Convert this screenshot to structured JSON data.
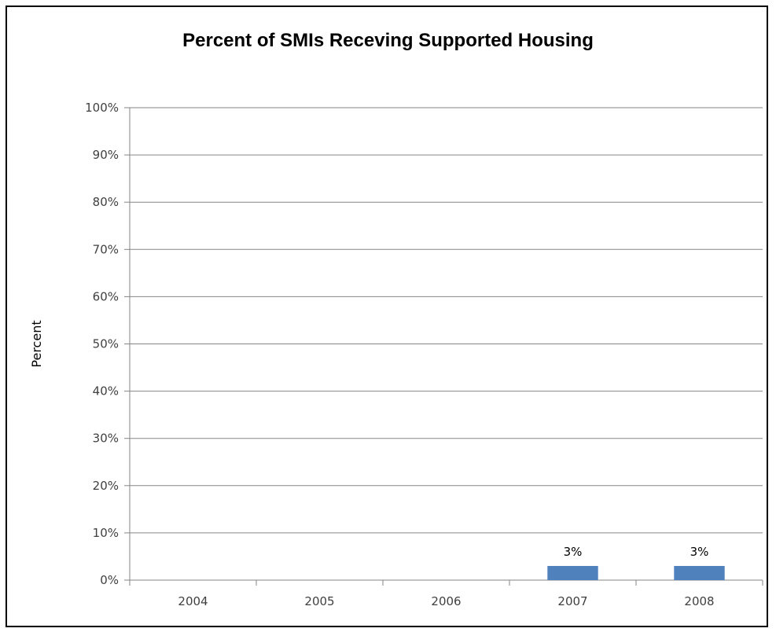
{
  "chart_data": {
    "type": "bar",
    "title": "Percent of SMIs Receving Supported Housing",
    "xlabel": "",
    "ylabel": "Percent",
    "categories": [
      "2004",
      "2005",
      "2006",
      "2007",
      "2008"
    ],
    "values": [
      0,
      0,
      0,
      3,
      3
    ],
    "data_labels": [
      "",
      "",
      "",
      "3%",
      "3%"
    ],
    "ylim": [
      0,
      100
    ],
    "yticks": [
      0,
      10,
      20,
      30,
      40,
      50,
      60,
      70,
      80,
      90,
      100
    ],
    "ytick_labels": [
      "0%",
      "10%",
      "20%",
      "30%",
      "40%",
      "50%",
      "60%",
      "70%",
      "80%",
      "90%",
      "100%"
    ],
    "grid": true,
    "legend": "none",
    "colors": {
      "bar": "#4F81BD",
      "gridline": "#868686",
      "axis": "#868686"
    }
  }
}
